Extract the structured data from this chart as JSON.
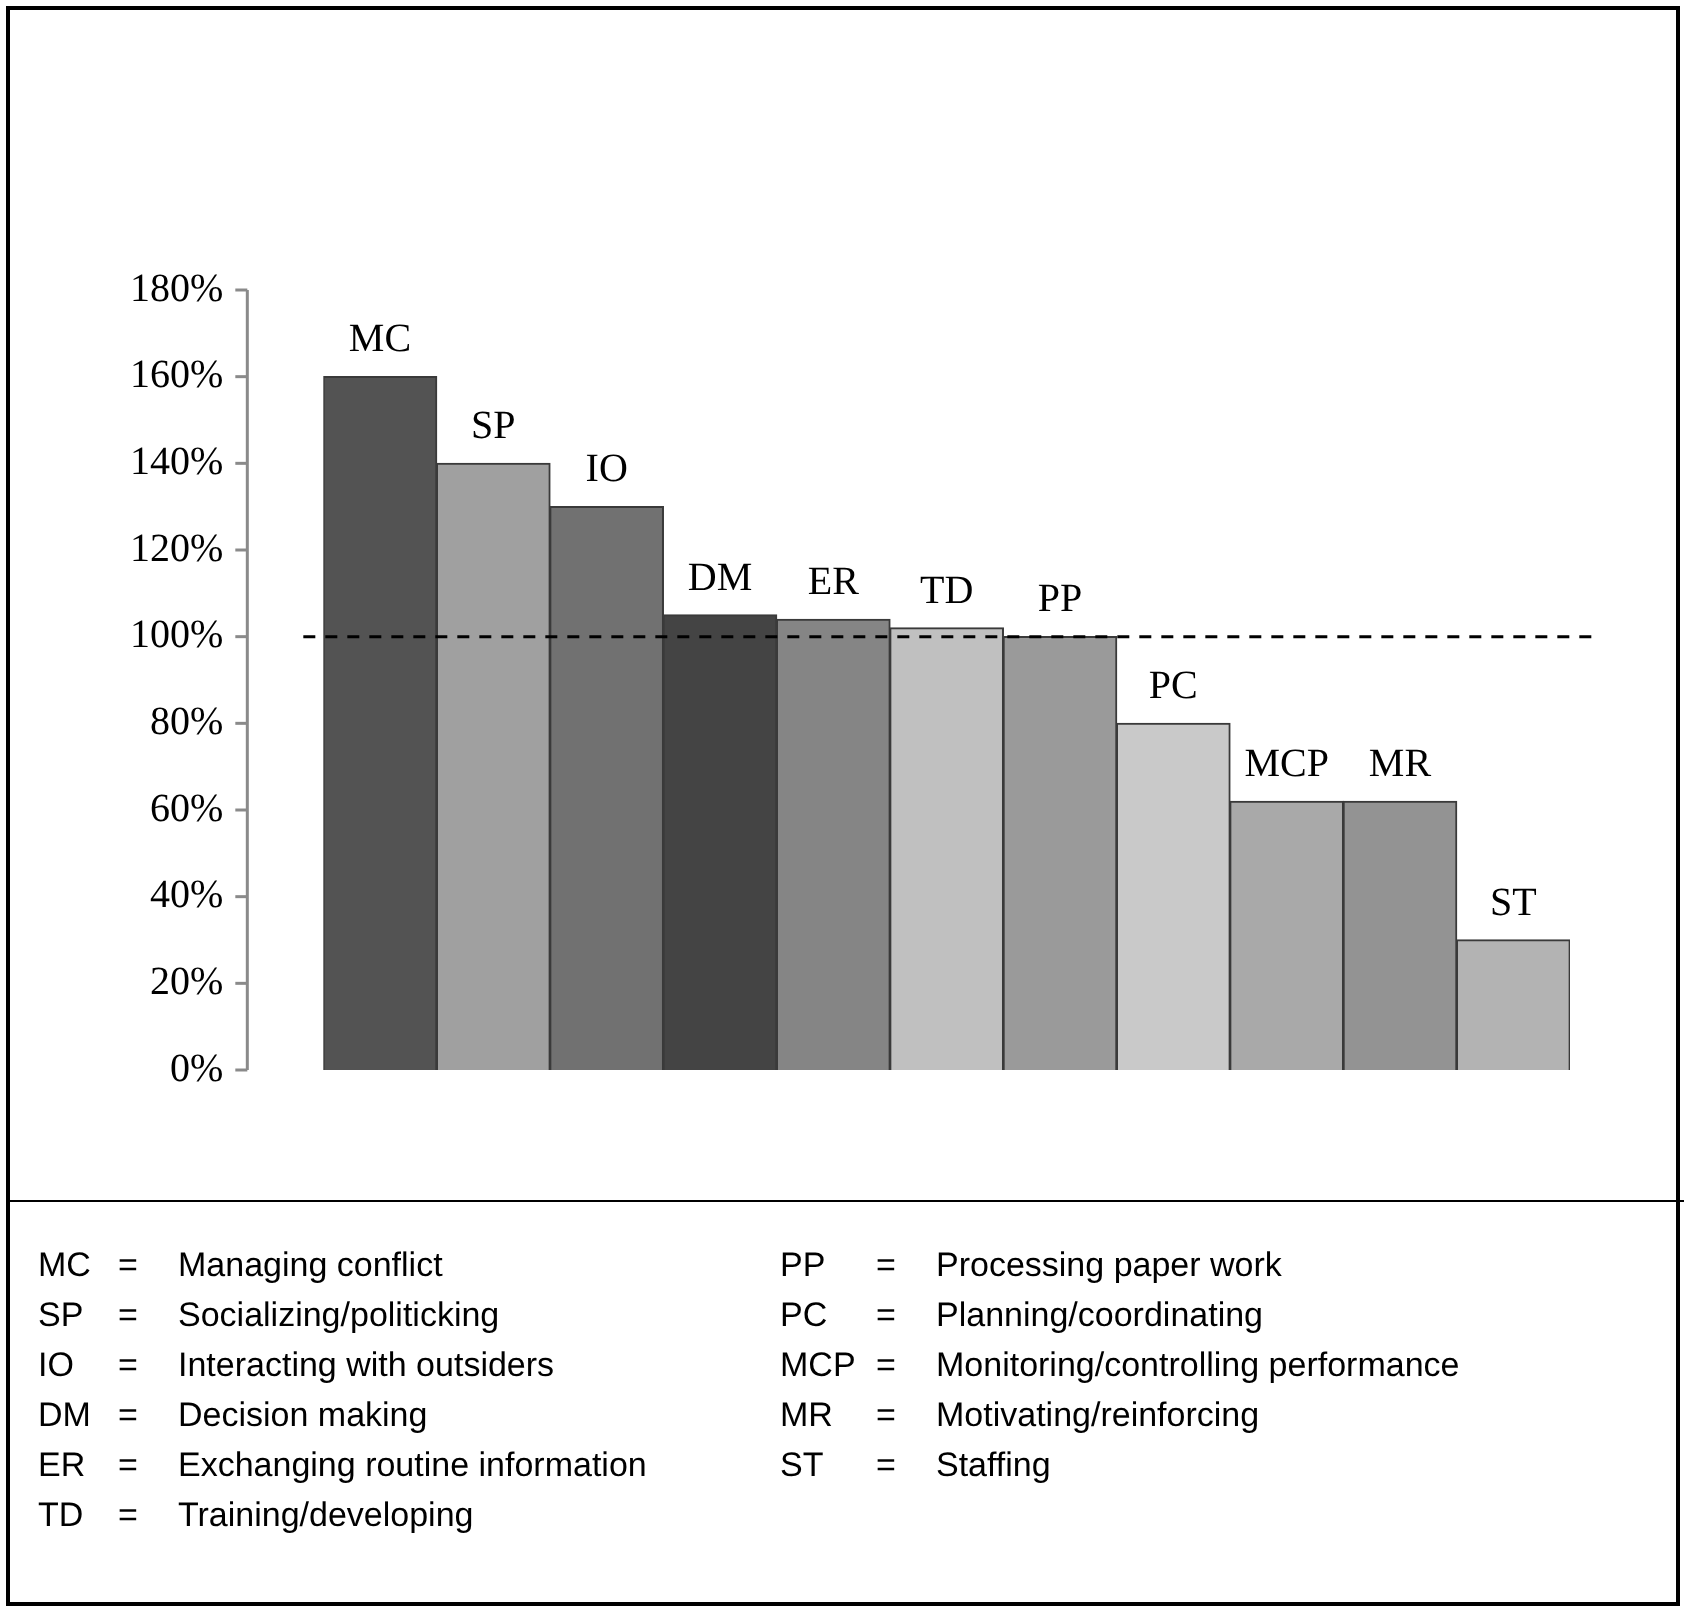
{
  "chart_data": {
    "type": "bar",
    "categories": [
      "MC",
      "SP",
      "IO",
      "DM",
      "ER",
      "TD",
      "PP",
      "PC",
      "MCP",
      "MR",
      "ST"
    ],
    "values": [
      160,
      140,
      130,
      105,
      104,
      102,
      100,
      80,
      62,
      62,
      30
    ],
    "colors": [
      "#535353",
      "#a0a0a0",
      "#717171",
      "#444444",
      "#858585",
      "#c0c0c0",
      "#9a9a9a",
      "#c9c9c9",
      "#a9a9a9",
      "#939393",
      "#b3b3b3"
    ],
    "ylim": [
      0,
      180
    ],
    "yticks": [
      {
        "value": 0,
        "label": "0%"
      },
      {
        "value": 20,
        "label": "20%"
      },
      {
        "value": 40,
        "label": "40%"
      },
      {
        "value": 60,
        "label": "60%"
      },
      {
        "value": 80,
        "label": "80%"
      },
      {
        "value": 100,
        "label": "100%"
      },
      {
        "value": 120,
        "label": "120%"
      },
      {
        "value": 140,
        "label": "140%"
      },
      {
        "value": 160,
        "label": "160%"
      },
      {
        "value": 180,
        "label": "180%"
      }
    ],
    "tick_labels": "y",
    "grid": false,
    "legend": false,
    "ref_lines": [
      {
        "axis": "y",
        "value": 100,
        "color": "#000000",
        "line_style": "dashed"
      }
    ],
    "annotations": [
      "MC = Managing conflict",
      "SP = Socializing/politicking",
      "IO = Interacting with outsiders",
      "DM = Decision making",
      "ER = Exchanging routine information",
      "TD = Training/developing",
      "PP = Processing paper work",
      "PC = Planning/coordinating",
      "MCP = Monitoring/controlling performance",
      "MR = Motivating/reinforcing",
      "ST = Staffing"
    ]
  }
}
